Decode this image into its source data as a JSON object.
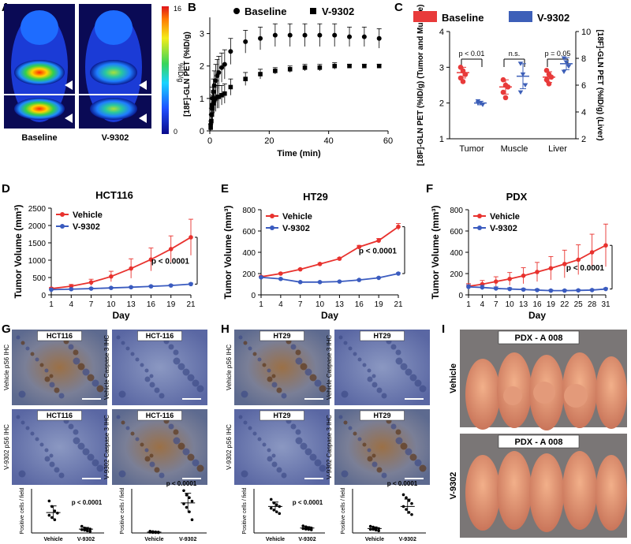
{
  "panel_letters": [
    "A",
    "B",
    "C",
    "D",
    "E",
    "F",
    "G",
    "H",
    "I"
  ],
  "panel_a": {
    "labels": [
      "Baseline",
      "V-9302"
    ],
    "colorbar": {
      "max": "16",
      "min": "0",
      "label": "%ID/g"
    }
  },
  "chart_data": [
    {
      "id": "B",
      "type": "scatter",
      "xlabel": "Time (min)",
      "ylabel": "[18F]-GLN PET (%ID/g)",
      "xlim": [
        0,
        60
      ],
      "ylim": [
        0,
        3.5
      ],
      "xticks": [
        "0",
        "20",
        "40",
        "60"
      ],
      "yticks": [
        "0",
        "1",
        "2",
        "3"
      ],
      "series": [
        {
          "name": "Baseline",
          "marker": "circle",
          "x": [
            0.3,
            0.5,
            0.7,
            0.9,
            1.2,
            1.5,
            2,
            2.5,
            3,
            4,
            5,
            7,
            12,
            17,
            22,
            27,
            32,
            37,
            42,
            47,
            52,
            57
          ],
          "y": [
            0.2,
            0.5,
            0.8,
            1.0,
            1.2,
            1.4,
            1.55,
            1.7,
            1.8,
            1.95,
            2.05,
            2.45,
            2.75,
            2.85,
            2.95,
            2.95,
            2.95,
            2.95,
            2.95,
            2.9,
            2.9,
            2.85
          ],
          "err": [
            0.1,
            0.2,
            0.3,
            0.35,
            0.4,
            0.45,
            0.5,
            0.5,
            0.5,
            0.45,
            0.45,
            0.4,
            0.35,
            0.35,
            0.35,
            0.35,
            0.35,
            0.35,
            0.35,
            0.3,
            0.3,
            0.3
          ]
        },
        {
          "name": "V-9302",
          "marker": "square",
          "x": [
            0.3,
            0.5,
            0.7,
            0.9,
            1.2,
            1.5,
            2,
            2.5,
            3,
            4,
            5,
            7,
            12,
            17,
            22,
            27,
            32,
            37,
            42,
            47,
            52,
            57
          ],
          "y": [
            0.1,
            0.3,
            0.5,
            0.7,
            0.85,
            0.95,
            1.0,
            1.05,
            1.05,
            1.1,
            1.15,
            1.35,
            1.6,
            1.75,
            1.85,
            1.9,
            1.95,
            1.95,
            2.0,
            2.0,
            2.0,
            2.0
          ],
          "err": [
            0.1,
            0.2,
            0.3,
            0.35,
            0.4,
            0.4,
            0.4,
            0.35,
            0.35,
            0.3,
            0.3,
            0.25,
            0.2,
            0.15,
            0.1,
            0.1,
            0.1,
            0.1,
            0.1,
            0.05,
            0.05,
            0.05
          ]
        }
      ]
    },
    {
      "id": "C",
      "type": "scatter",
      "ylabel_left": "[18F]-GLN PET (%ID/g) (Tumor and Muscle)",
      "ylabel_right": "[18F]-GLN PET (%ID/g) (Liver)",
      "ylim_left": [
        1,
        4
      ],
      "ylim_right": [
        2,
        10
      ],
      "yticks_left": [
        "1",
        "2",
        "3",
        "4"
      ],
      "yticks_right": [
        "2",
        "4",
        "6",
        "8",
        "10"
      ],
      "categories": [
        "Tumor",
        "Muscle",
        "Liver"
      ],
      "legend": [
        "Baseline",
        "V-9302"
      ],
      "colors": {
        "Baseline": "#e83a3a",
        "V-9302": "#3d5fb8"
      },
      "annotations": [
        "p < 0.01",
        "n.s.",
        "p = 0.05"
      ],
      "groups": [
        {
          "category": "Tumor",
          "Baseline": {
            "axis": "left",
            "values": [
              3.0,
              2.9,
              2.8,
              2.7,
              2.6
            ],
            "mean": 2.85,
            "sd": 0.15
          },
          "V-9302": {
            "axis": "left",
            "values": [
              2.05,
              2.0,
              1.95,
              2.0
            ],
            "mean": 2.0,
            "sd": 0.05
          }
        },
        {
          "category": "Muscle",
          "Baseline": {
            "axis": "left",
            "values": [
              2.65,
              2.5,
              2.45,
              2.3,
              2.15
            ],
            "mean": 2.45,
            "sd": 0.2
          },
          "V-9302": {
            "axis": "left",
            "values": [
              3.1,
              2.8,
              2.5,
              2.3
            ],
            "mean": 2.75,
            "sd": 0.35
          }
        },
        {
          "category": "Liver",
          "Baseline": {
            "axis": "right",
            "values": [
              7.1,
              6.8,
              6.6,
              6.4,
              6.1
            ],
            "mean": 6.6,
            "sd": 0.4
          },
          "V-9302": {
            "axis": "right",
            "values": [
              8.0,
              7.7,
              7.4,
              7.0
            ],
            "mean": 7.6,
            "sd": 0.45
          }
        }
      ]
    },
    {
      "id": "D",
      "type": "line",
      "title": "HCT116",
      "xlabel": "Day",
      "ylabel": "Tumor Volume (mm³)",
      "ylim": [
        0,
        2500
      ],
      "yticks": [
        "0",
        "500",
        "1000",
        "1500",
        "2000",
        "2500"
      ],
      "x": [
        1,
        4,
        7,
        10,
        13,
        16,
        19,
        21
      ],
      "xticks": [
        "1",
        "4",
        "7",
        "10",
        "13",
        "16",
        "19",
        "21"
      ],
      "annotation": "p < 0.0001",
      "series": [
        {
          "name": "Vehicle",
          "color": "#e8322e",
          "values": [
            180,
            250,
            360,
            530,
            760,
            1020,
            1320,
            1660
          ],
          "err": [
            30,
            50,
            90,
            150,
            280,
            330,
            380,
            520
          ]
        },
        {
          "name": "V-9302",
          "color": "#3a5bbf",
          "values": [
            150,
            165,
            180,
            200,
            220,
            245,
            270,
            310
          ],
          "err": [
            15,
            15,
            20,
            20,
            20,
            25,
            25,
            30
          ]
        }
      ]
    },
    {
      "id": "F",
      "type": "line",
      "title": "HT29",
      "xlabel": "Day",
      "ylabel": "Tumor Volume (mm³)",
      "ylim": [
        0,
        800
      ],
      "yticks": [
        "0",
        "200",
        "400",
        "600",
        "800"
      ],
      "x": [
        1,
        4,
        7,
        10,
        13,
        16,
        19,
        21
      ],
      "xticks": [
        "1",
        "4",
        "7",
        "10",
        "13",
        "16",
        "19",
        "21"
      ],
      "annotation": "p < 0.0001",
      "series": [
        {
          "name": "Vehicle",
          "color": "#e8322e",
          "values": [
            170,
            200,
            240,
            290,
            340,
            450,
            510,
            640
          ],
          "err": [
            8,
            8,
            8,
            8,
            10,
            15,
            20,
            30
          ]
        },
        {
          "name": "V-9302",
          "color": "#3a5bbf",
          "values": [
            165,
            150,
            120,
            120,
            125,
            140,
            160,
            200
          ],
          "err": [
            5,
            5,
            5,
            5,
            5,
            6,
            6,
            8
          ]
        }
      ]
    },
    {
      "id": "H",
      "type": "line",
      "title": "PDX",
      "xlabel": "Day",
      "ylabel": "Tumor Volume (mm³)",
      "ylim": [
        0,
        800
      ],
      "yticks": [
        "0",
        "200",
        "400",
        "600",
        "800"
      ],
      "x": [
        1,
        4,
        7,
        10,
        13,
        16,
        19,
        22,
        25,
        28,
        31
      ],
      "xticks": [
        "1",
        "4",
        "7",
        "10",
        "13",
        "16",
        "19",
        "22",
        "25",
        "28",
        "31"
      ],
      "annotation": "p < 0.0001",
      "series": [
        {
          "name": "Vehicle",
          "color": "#e8322e",
          "values": [
            80,
            100,
            125,
            150,
            180,
            215,
            250,
            290,
            330,
            400,
            465
          ],
          "err": [
            25,
            35,
            45,
            60,
            75,
            90,
            110,
            130,
            140,
            170,
            200
          ]
        },
        {
          "name": "V-9302",
          "color": "#3a5bbf",
          "values": [
            75,
            70,
            60,
            55,
            50,
            45,
            40,
            40,
            42,
            45,
            55
          ],
          "err": [
            20,
            20,
            15,
            12,
            10,
            10,
            8,
            8,
            8,
            8,
            10
          ]
        }
      ]
    },
    {
      "id": "E-pS6",
      "type": "scatter",
      "ylabel": "Positive cells / field",
      "ylim": [
        0,
        400
      ],
      "categories": [
        "Vehicle",
        "V-9302"
      ],
      "annotation": "p < 0.0001",
      "groups": [
        {
          "values": [
            290,
            240,
            200,
            180,
            160,
            140,
            120
          ],
          "mean": 185,
          "sd": 60
        },
        {
          "values": [
            60,
            45,
            40,
            35,
            30,
            25,
            20,
            15
          ],
          "mean": 35,
          "sd": 15
        }
      ]
    },
    {
      "id": "E-Casp3",
      "type": "scatter",
      "ylabel": "Positive cells / field",
      "ylim": [
        0,
        500
      ],
      "categories": [
        "Vehicle",
        "V-9302"
      ],
      "annotation": "p < 0.0001",
      "groups": [
        {
          "values": [
            20,
            15,
            12,
            10,
            8,
            6,
            5,
            4
          ],
          "mean": 10,
          "sd": 5
        },
        {
          "values": [
            480,
            430,
            400,
            360,
            330,
            290,
            240,
            150
          ],
          "mean": 340,
          "sd": 110
        }
      ]
    },
    {
      "id": "G-pS6",
      "type": "scatter",
      "ylabel": "Positive cells / field",
      "ylim": [
        0,
        250
      ],
      "categories": [
        "Vehicle",
        "V-9302"
      ],
      "annotation": "p < 0.0001",
      "groups": [
        {
          "values": [
            190,
            170,
            160,
            150,
            140,
            130,
            120,
            110
          ],
          "mean": 150,
          "sd": 25
        },
        {
          "values": [
            40,
            35,
            30,
            28,
            25,
            22,
            20,
            18
          ],
          "mean": 28,
          "sd": 8
        }
      ]
    },
    {
      "id": "G-Casp3",
      "type": "scatter",
      "ylabel": "Positive cells / field",
      "ylim": [
        0,
        60
      ],
      "categories": [
        "Vehicle",
        "V-9302"
      ],
      "annotation": "p < 0.0001",
      "groups": [
        {
          "values": [
            9,
            8,
            7,
            6,
            5,
            5,
            4,
            3
          ],
          "mean": 6,
          "sd": 2
        },
        {
          "values": [
            52,
            48,
            44,
            40,
            36,
            32,
            28,
            25
          ],
          "mean": 36,
          "sd": 10
        }
      ]
    }
  ],
  "micrographs": {
    "E": [
      {
        "tag": "HCT116",
        "side": "Vehicle pS6 IHC"
      },
      {
        "tag": "HCT-116",
        "side": "Vehicle Caspase 3 IHC"
      },
      {
        "tag": "HCT116",
        "side": "V-9302 pS6 IHC"
      },
      {
        "tag": "HCT-116",
        "side": "V-9302 Caspase 3 IHC"
      }
    ],
    "G": [
      {
        "tag": "HT29",
        "side": "Vehicle pS6 IHC"
      },
      {
        "tag": "HT29",
        "side": "Vehicle Caspase 3 IHC"
      },
      {
        "tag": "HT29",
        "side": "V-9302 pS6 IHC"
      },
      {
        "tag": "HT29",
        "side": "V-9302 Caspase 3 IHC"
      }
    ]
  },
  "panel_i": {
    "tags": [
      "PDX - A 008",
      "PDX - A 008"
    ],
    "side_labels": [
      "Vehicle",
      "V-9302"
    ]
  }
}
